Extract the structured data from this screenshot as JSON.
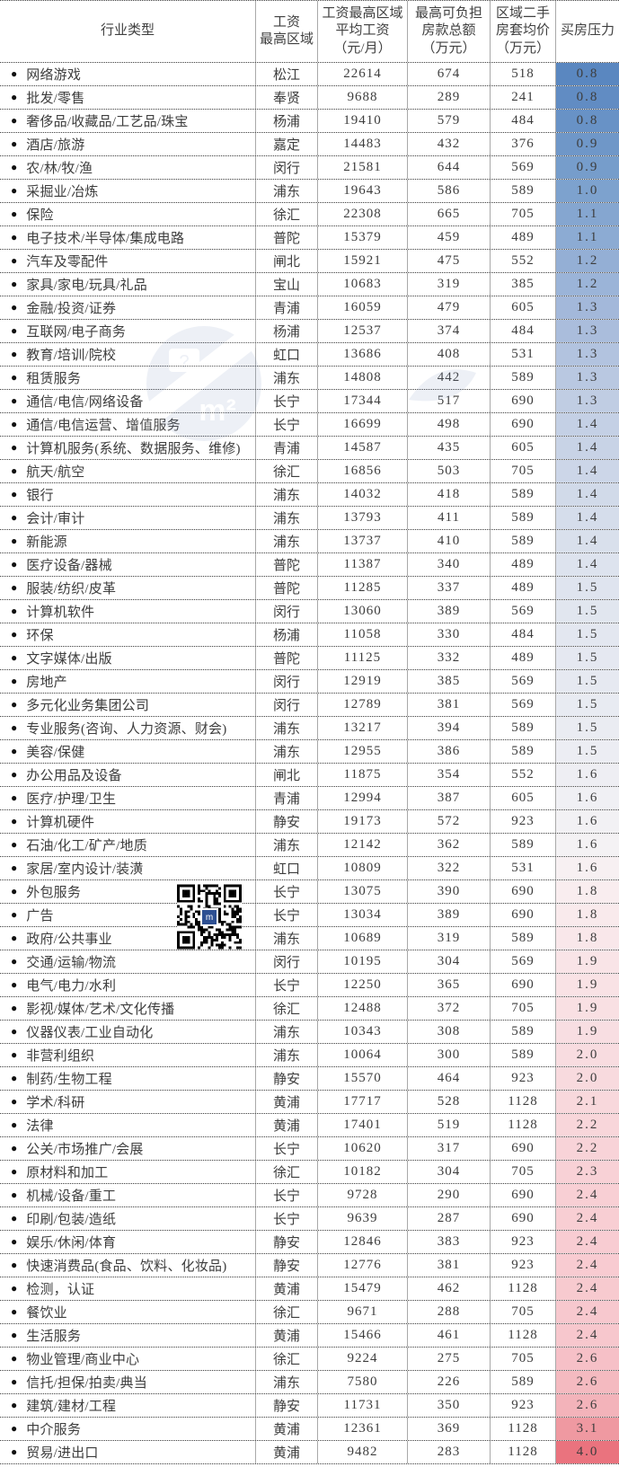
{
  "table": {
    "columns": [
      "行业类型",
      "工资\n最高区域",
      "工资最高区域\n平均工资\n（元/月）",
      "最高可负担\n房款总额\n（万元）",
      "区域二手\n房套均价\n（万元）",
      "买房压力"
    ],
    "rows": [
      {
        "industry": "网络游戏",
        "region": "松江",
        "wage": "22614",
        "affordable": "674",
        "price": "518",
        "pressure": "0.8"
      },
      {
        "industry": "批发/零售",
        "region": "奉贤",
        "wage": "9688",
        "affordable": "289",
        "price": "241",
        "pressure": "0.8"
      },
      {
        "industry": "奢侈品/收藏品/工艺品/珠宝",
        "region": "杨浦",
        "wage": "19410",
        "affordable": "579",
        "price": "484",
        "pressure": "0.8"
      },
      {
        "industry": "酒店/旅游",
        "region": "嘉定",
        "wage": "14483",
        "affordable": "432",
        "price": "376",
        "pressure": "0.9"
      },
      {
        "industry": "农/林/牧/渔",
        "region": "闵行",
        "wage": "21581",
        "affordable": "644",
        "price": "569",
        "pressure": "0.9"
      },
      {
        "industry": "采掘业/冶炼",
        "region": "浦东",
        "wage": "19643",
        "affordable": "586",
        "price": "589",
        "pressure": "1.0"
      },
      {
        "industry": "保险",
        "region": "徐汇",
        "wage": "22308",
        "affordable": "665",
        "price": "705",
        "pressure": "1.1"
      },
      {
        "industry": "电子技术/半导体/集成电路",
        "region": "普陀",
        "wage": "15379",
        "affordable": "459",
        "price": "489",
        "pressure": "1.1"
      },
      {
        "industry": "汽车及零配件",
        "region": "闸北",
        "wage": "15921",
        "affordable": "475",
        "price": "552",
        "pressure": "1.2"
      },
      {
        "industry": "家具/家电/玩具/礼品",
        "region": "宝山",
        "wage": "10683",
        "affordable": "319",
        "price": "385",
        "pressure": "1.2"
      },
      {
        "industry": "金融/投资/证券",
        "region": "青浦",
        "wage": "16059",
        "affordable": "479",
        "price": "605",
        "pressure": "1.3"
      },
      {
        "industry": "互联网/电子商务",
        "region": "杨浦",
        "wage": "12537",
        "affordable": "374",
        "price": "484",
        "pressure": "1.3"
      },
      {
        "industry": "教育/培训/院校",
        "region": "虹口",
        "wage": "13686",
        "affordable": "408",
        "price": "531",
        "pressure": "1.3"
      },
      {
        "industry": "租赁服务",
        "region": "浦东",
        "wage": "14808",
        "affordable": "442",
        "price": "589",
        "pressure": "1.3"
      },
      {
        "industry": "通信/电信/网络设备",
        "region": "长宁",
        "wage": "17344",
        "affordable": "517",
        "price": "690",
        "pressure": "1.3"
      },
      {
        "industry": "通信/电信运营、增值服务",
        "region": "长宁",
        "wage": "16699",
        "affordable": "498",
        "price": "690",
        "pressure": "1.4"
      },
      {
        "industry": "计算机服务(系统、数据服务、维修)",
        "region": "青浦",
        "wage": "14587",
        "affordable": "435",
        "price": "605",
        "pressure": "1.4"
      },
      {
        "industry": "航天/航空",
        "region": "徐汇",
        "wage": "16856",
        "affordable": "503",
        "price": "705",
        "pressure": "1.4"
      },
      {
        "industry": "银行",
        "region": "浦东",
        "wage": "14032",
        "affordable": "418",
        "price": "589",
        "pressure": "1.4"
      },
      {
        "industry": "会计/审计",
        "region": "浦东",
        "wage": "13793",
        "affordable": "411",
        "price": "589",
        "pressure": "1.4"
      },
      {
        "industry": "新能源",
        "region": "浦东",
        "wage": "13737",
        "affordable": "410",
        "price": "589",
        "pressure": "1.4"
      },
      {
        "industry": "医疗设备/器械",
        "region": "普陀",
        "wage": "11387",
        "affordable": "340",
        "price": "489",
        "pressure": "1.4"
      },
      {
        "industry": "服装/纺织/皮革",
        "region": "普陀",
        "wage": "11285",
        "affordable": "337",
        "price": "489",
        "pressure": "1.5"
      },
      {
        "industry": "计算机软件",
        "region": "闵行",
        "wage": "13060",
        "affordable": "389",
        "price": "569",
        "pressure": "1.5"
      },
      {
        "industry": "环保",
        "region": "杨浦",
        "wage": "11058",
        "affordable": "330",
        "price": "484",
        "pressure": "1.5"
      },
      {
        "industry": "文字媒体/出版",
        "region": "普陀",
        "wage": "11125",
        "affordable": "332",
        "price": "489",
        "pressure": "1.5"
      },
      {
        "industry": "房地产",
        "region": "闵行",
        "wage": "12919",
        "affordable": "385",
        "price": "569",
        "pressure": "1.5"
      },
      {
        "industry": "多元化业务集团公司",
        "region": "闵行",
        "wage": "12789",
        "affordable": "381",
        "price": "569",
        "pressure": "1.5"
      },
      {
        "industry": "专业服务(咨询、人力资源、财会)",
        "region": "浦东",
        "wage": "13217",
        "affordable": "394",
        "price": "589",
        "pressure": "1.5"
      },
      {
        "industry": "美容/保健",
        "region": "浦东",
        "wage": "12955",
        "affordable": "386",
        "price": "589",
        "pressure": "1.5"
      },
      {
        "industry": "办公用品及设备",
        "region": "闸北",
        "wage": "11875",
        "affordable": "354",
        "price": "552",
        "pressure": "1.6"
      },
      {
        "industry": "医疗/护理/卫生",
        "region": "青浦",
        "wage": "12994",
        "affordable": "387",
        "price": "605",
        "pressure": "1.6"
      },
      {
        "industry": "计算机硬件",
        "region": "静安",
        "wage": "19173",
        "affordable": "572",
        "price": "923",
        "pressure": "1.6"
      },
      {
        "industry": "石油/化工/矿产/地质",
        "region": "浦东",
        "wage": "12142",
        "affordable": "362",
        "price": "589",
        "pressure": "1.6"
      },
      {
        "industry": "家居/室内设计/装潢",
        "region": "虹口",
        "wage": "10809",
        "affordable": "322",
        "price": "531",
        "pressure": "1.6"
      },
      {
        "industry": "外包服务",
        "region": "长宁",
        "wage": "13075",
        "affordable": "390",
        "price": "690",
        "pressure": "1.8"
      },
      {
        "industry": "广告",
        "region": "长宁",
        "wage": "13034",
        "affordable": "389",
        "price": "690",
        "pressure": "1.8"
      },
      {
        "industry": "政府/公共事业",
        "region": "浦东",
        "wage": "10689",
        "affordable": "319",
        "price": "589",
        "pressure": "1.8"
      },
      {
        "industry": "交通/运输/物流",
        "region": "闵行",
        "wage": "10195",
        "affordable": "304",
        "price": "569",
        "pressure": "1.9"
      },
      {
        "industry": "电气/电力/水利",
        "region": "长宁",
        "wage": "12250",
        "affordable": "365",
        "price": "690",
        "pressure": "1.9"
      },
      {
        "industry": "影视/媒体/艺术/文化传播",
        "region": "徐汇",
        "wage": "12488",
        "affordable": "372",
        "price": "705",
        "pressure": "1.9"
      },
      {
        "industry": "仪器仪表/工业自动化",
        "region": "浦东",
        "wage": "10343",
        "affordable": "308",
        "price": "589",
        "pressure": "1.9"
      },
      {
        "industry": "非营利组织",
        "region": "浦东",
        "wage": "10064",
        "affordable": "300",
        "price": "589",
        "pressure": "2.0"
      },
      {
        "industry": "制药/生物工程",
        "region": "静安",
        "wage": "15570",
        "affordable": "464",
        "price": "923",
        "pressure": "2.0"
      },
      {
        "industry": "学术/科研",
        "region": "黄浦",
        "wage": "17717",
        "affordable": "528",
        "price": "1128",
        "pressure": "2.1"
      },
      {
        "industry": "法律",
        "region": "黄浦",
        "wage": "17401",
        "affordable": "519",
        "price": "1128",
        "pressure": "2.2"
      },
      {
        "industry": "公关/市场推广/会展",
        "region": "长宁",
        "wage": "10620",
        "affordable": "317",
        "price": "690",
        "pressure": "2.2"
      },
      {
        "industry": "原材料和加工",
        "region": "徐汇",
        "wage": "10182",
        "affordable": "304",
        "price": "705",
        "pressure": "2.3"
      },
      {
        "industry": "机械/设备/重工",
        "region": "长宁",
        "wage": "9728",
        "affordable": "290",
        "price": "690",
        "pressure": "2.4"
      },
      {
        "industry": "印刷/包装/造纸",
        "region": "长宁",
        "wage": "9639",
        "affordable": "287",
        "price": "690",
        "pressure": "2.4"
      },
      {
        "industry": "娱乐/休闲/体育",
        "region": "静安",
        "wage": "12846",
        "affordable": "383",
        "price": "923",
        "pressure": "2.4"
      },
      {
        "industry": "快速消费品(食品、饮料、化妆品)",
        "region": "静安",
        "wage": "12776",
        "affordable": "381",
        "price": "923",
        "pressure": "2.4"
      },
      {
        "industry": "检测，认证",
        "region": "黄浦",
        "wage": "15479",
        "affordable": "462",
        "price": "1128",
        "pressure": "2.4"
      },
      {
        "industry": "餐饮业",
        "region": "徐汇",
        "wage": "9671",
        "affordable": "288",
        "price": "705",
        "pressure": "2.4"
      },
      {
        "industry": "生活服务",
        "region": "黄浦",
        "wage": "15466",
        "affordable": "461",
        "price": "1128",
        "pressure": "2.4"
      },
      {
        "industry": "物业管理/商业中心",
        "region": "徐汇",
        "wage": "9224",
        "affordable": "275",
        "price": "705",
        "pressure": "2.6"
      },
      {
        "industry": "信托/担保/拍卖/典当",
        "region": "浦东",
        "wage": "7580",
        "affordable": "226",
        "price": "589",
        "pressure": "2.6"
      },
      {
        "industry": "建筑/建材/工程",
        "region": "静安",
        "wage": "11731",
        "affordable": "350",
        "price": "923",
        "pressure": "2.6"
      },
      {
        "industry": "中介服务",
        "region": "黄浦",
        "wage": "12361",
        "affordable": "369",
        "price": "1128",
        "pressure": "3.1"
      },
      {
        "industry": "贸易/进出口",
        "region": "黄浦",
        "wage": "9482",
        "affordable": "283",
        "price": "1128",
        "pressure": "4.0"
      }
    ]
  },
  "pressure_scale": {
    "description": "blue-low to red-high color scale of 买房压力 column",
    "stops": [
      {
        "index": 0,
        "color": "#5a87c0"
      },
      {
        "index": 5,
        "color": "#7da2ce"
      },
      {
        "index": 10,
        "color": "#a3b8da"
      },
      {
        "index": 14,
        "color": "#c0cde3"
      },
      {
        "index": 21,
        "color": "#dde3ee"
      },
      {
        "index": 29,
        "color": "#ecedf3"
      },
      {
        "index": 33,
        "color": "#f4f2f4"
      },
      {
        "index": 35,
        "color": "#f9edef"
      },
      {
        "index": 38,
        "color": "#f9e4e7"
      },
      {
        "index": 43,
        "color": "#f8dade"
      },
      {
        "index": 48,
        "color": "#f8cfd4"
      },
      {
        "index": 54,
        "color": "#f7c7cd"
      },
      {
        "index": 57,
        "color": "#f3b3ba"
      },
      {
        "index": 58,
        "color": "#ef99a1"
      },
      {
        "index": 59,
        "color": "#ea737e"
      }
    ]
  },
  "bullet_glyph": "●",
  "watermark": {
    "question_mark": "?",
    "unit_text": "m²",
    "color": "#7a93bd"
  }
}
